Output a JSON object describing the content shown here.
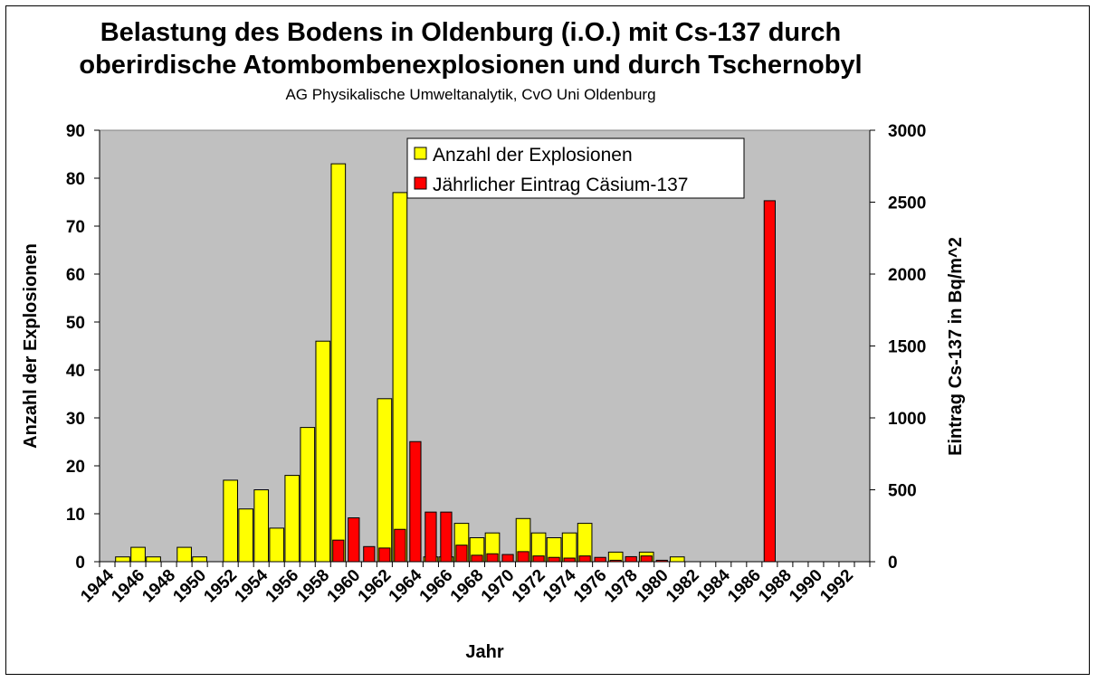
{
  "chart_data": {
    "type": "bar",
    "title": "Belastung des Bodens in Oldenburg (i.O.) mit Cs-137 durch oberirdische Atombombenexplosionen und durch Tschernobyl",
    "title_lines": [
      "Belastung des Bodens in Oldenburg (i.O.) mit Cs-137 durch",
      "oberirdische Atombombenexplosionen und durch Tschernobyl"
    ],
    "subtitle": "AG Physikalische Umweltanalytik, CvO Uni Oldenburg",
    "xlabel": "Jahr",
    "ylabel": "Anzahl der Explosionen",
    "y2label": "Eintrag Cs-137 in Bq/m^2",
    "ylim": [
      0,
      90
    ],
    "y2lim": [
      0,
      3000
    ],
    "yticks": [
      0,
      10,
      20,
      30,
      40,
      50,
      60,
      70,
      80,
      90
    ],
    "y2ticks": [
      0,
      500,
      1000,
      1500,
      2000,
      2500,
      3000
    ],
    "grid": false,
    "legend_position": "top-center",
    "categories": [
      1944,
      1945,
      1946,
      1947,
      1948,
      1949,
      1950,
      1951,
      1952,
      1953,
      1954,
      1955,
      1956,
      1957,
      1958,
      1959,
      1960,
      1961,
      1962,
      1963,
      1964,
      1965,
      1966,
      1967,
      1968,
      1969,
      1970,
      1971,
      1972,
      1973,
      1974,
      1975,
      1976,
      1977,
      1978,
      1979,
      1980,
      1981,
      1982,
      1983,
      1984,
      1985,
      1986,
      1987,
      1988,
      1989,
      1990,
      1991,
      1992,
      1993
    ],
    "tick_labels": [
      "1944",
      "1946",
      "1948",
      "1950",
      "1952",
      "1954",
      "1956",
      "1958",
      "1960",
      "1962",
      "1964",
      "1966",
      "1968",
      "1970",
      "1972",
      "1974",
      "1976",
      "1978",
      "1980",
      "1982",
      "1984",
      "1986",
      "1988",
      "1990",
      "1992"
    ],
    "series": [
      {
        "name": "Anzahl der Explosionen",
        "axis": "left",
        "color": "#ffff00",
        "values": [
          0,
          1,
          3,
          1,
          0,
          3,
          1,
          0,
          17,
          11,
          15,
          7,
          18,
          28,
          46,
          83,
          0,
          0,
          34,
          77,
          0,
          1,
          1,
          8,
          5,
          6,
          0,
          9,
          6,
          5,
          6,
          8,
          0,
          2,
          0,
          2,
          0,
          1,
          0,
          0,
          0,
          0,
          0,
          0,
          0,
          0,
          0,
          0,
          0,
          0
        ]
      },
      {
        "name": "Jährlicher Eintrag Cäsium-137",
        "axis": "right",
        "color": "#ff0000",
        "values": [
          0,
          0,
          0,
          0,
          0,
          0,
          0,
          0,
          0,
          0,
          0,
          0,
          0,
          0,
          0,
          150,
          305,
          105,
          95,
          225,
          835,
          345,
          345,
          115,
          45,
          55,
          50,
          70,
          40,
          30,
          25,
          40,
          30,
          10,
          35,
          40,
          10,
          0,
          0,
          0,
          0,
          0,
          0,
          2510,
          0,
          0,
          0,
          0,
          0,
          0
        ]
      }
    ]
  }
}
